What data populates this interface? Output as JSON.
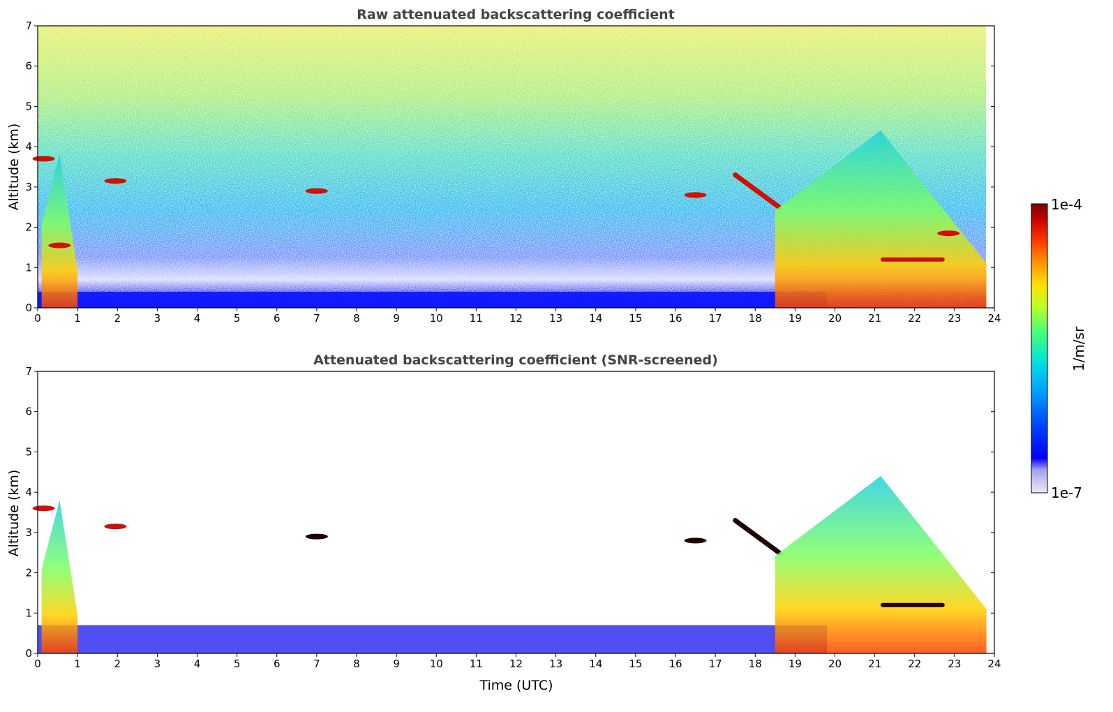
{
  "chart_data": [
    {
      "type": "heatmap",
      "title": "Raw attenuated backscattering coefficient",
      "xlabel": "",
      "ylabel": "Altitude (km)",
      "xlim": [
        0,
        24
      ],
      "ylim": [
        0,
        7
      ],
      "xticks": [
        "0",
        "1",
        "2",
        "3",
        "4",
        "5",
        "6",
        "7",
        "8",
        "9",
        "10",
        "11",
        "12",
        "13",
        "14",
        "15",
        "16",
        "17",
        "18",
        "19",
        "20",
        "21",
        "22",
        "23",
        "24"
      ],
      "yticks": [
        "0",
        "1",
        "2",
        "3",
        "4",
        "5",
        "6",
        "7"
      ],
      "features": [
        {
          "name": "boundary layer",
          "t_start": 0,
          "t_end": 19.8,
          "alt_top_km": 0.4,
          "level": "low"
        },
        {
          "name": "noise field aloft",
          "t_start": 0,
          "t_end": 23.8,
          "alt_bottom_km": 1.0,
          "alt_top_km": 7.0,
          "level": "moderate-noisy"
        },
        {
          "name": "cloud",
          "t": 0.15,
          "alt_km": 3.7,
          "level": "high"
        },
        {
          "name": "plume",
          "t_start": 0.1,
          "t_end": 1.0,
          "alt_top_km": 3.8,
          "level": "moderate"
        },
        {
          "name": "cloud",
          "t": 0.55,
          "alt_km": 1.55,
          "level": "high"
        },
        {
          "name": "cloud",
          "t": 1.95,
          "alt_km": 3.15,
          "level": "high"
        },
        {
          "name": "cloud",
          "t": 7.0,
          "alt_km": 2.9,
          "level": "high"
        },
        {
          "name": "cloud",
          "t": 16.5,
          "alt_km": 2.8,
          "level": "high"
        },
        {
          "name": "descending cloud",
          "t_start": 17.5,
          "t_end": 18.6,
          "alt_start_km": 3.3,
          "alt_end_km": 2.5,
          "level": "high"
        },
        {
          "name": "aerosol plumes",
          "t_start": 18.5,
          "t_end": 23.8,
          "alt_top_km": 4.4,
          "level": "moderate-high"
        },
        {
          "name": "cloud layer",
          "t_start": 21.2,
          "t_end": 22.7,
          "alt_km": 1.2,
          "level": "high"
        },
        {
          "name": "cloud",
          "t": 22.85,
          "alt_km": 1.85,
          "level": "high"
        }
      ]
    },
    {
      "type": "heatmap",
      "title": "Attenuated backscattering coefficient (SNR-screened)",
      "xlabel": "Time (UTC)",
      "ylabel": "Altitude (km)",
      "xlim": [
        0,
        24
      ],
      "ylim": [
        0,
        7
      ],
      "xticks": [
        "0",
        "1",
        "2",
        "3",
        "4",
        "5",
        "6",
        "7",
        "8",
        "9",
        "10",
        "11",
        "12",
        "13",
        "14",
        "15",
        "16",
        "17",
        "18",
        "19",
        "20",
        "21",
        "22",
        "23",
        "24"
      ],
      "yticks": [
        "0",
        "1",
        "2",
        "3",
        "4",
        "5",
        "6",
        "7"
      ],
      "features": [
        {
          "name": "boundary layer",
          "t_start": 0,
          "t_end": 19.8,
          "alt_top_km": 0.7,
          "level": "low"
        },
        {
          "name": "cloud",
          "t": 0.15,
          "alt_km": 3.6,
          "level": "high"
        },
        {
          "name": "plume",
          "t_start": 0.1,
          "t_end": 1.0,
          "alt_top_km": 3.8,
          "level": "moderate"
        },
        {
          "name": "cloud",
          "t": 1.95,
          "alt_km": 3.15,
          "level": "high"
        },
        {
          "name": "cloud",
          "t": 7.0,
          "alt_km": 2.9,
          "level": "very high"
        },
        {
          "name": "cloud",
          "t": 16.5,
          "alt_km": 2.8,
          "level": "very high"
        },
        {
          "name": "descending cloud",
          "t_start": 17.5,
          "t_end": 18.6,
          "alt_start_km": 3.3,
          "alt_end_km": 2.5,
          "level": "very high"
        },
        {
          "name": "aerosol plumes",
          "t_start": 18.5,
          "t_end": 23.8,
          "alt_top_km": 4.4,
          "level": "moderate-high"
        },
        {
          "name": "cloud layer",
          "t_start": 21.2,
          "t_end": 22.7,
          "alt_km": 1.2,
          "level": "very high"
        }
      ]
    }
  ],
  "colorbar": {
    "label": "1/m/sr",
    "max_label": "1e-4",
    "min_label": "1e-7",
    "scale": "log",
    "colors": [
      "#e8e8f8",
      "#c8c8f0",
      "#a0a0f0",
      "#0000ff",
      "#0050ff",
      "#00a0ff",
      "#00e0e0",
      "#40ff80",
      "#c0ff20",
      "#ffe000",
      "#ff9000",
      "#ff3000",
      "#c00000",
      "#800000"
    ]
  }
}
